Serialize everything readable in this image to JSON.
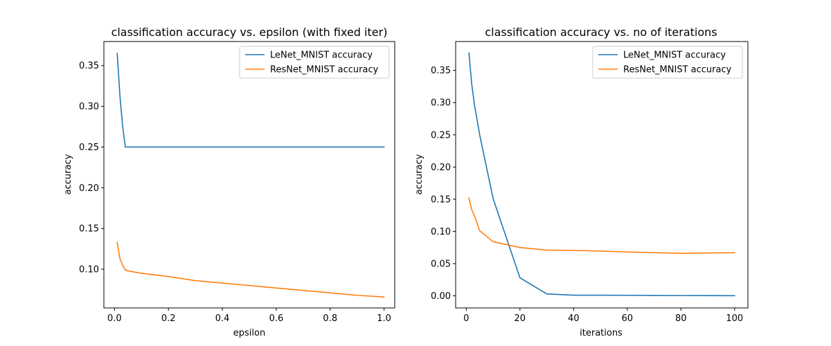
{
  "chart_data": [
    {
      "type": "line",
      "title": "classification accuracy vs. epsilon (with fixed iter)",
      "xlabel": "epsilon",
      "ylabel": "accuracy",
      "xlim": [
        -0.0395,
        1.0395
      ],
      "ylim": [
        0.0525,
        0.3795
      ],
      "xticks": [
        0.0,
        0.2,
        0.4,
        0.6,
        0.8,
        1.0
      ],
      "xtick_labels": [
        "0.0",
        "0.2",
        "0.4",
        "0.6",
        "0.8",
        "1.0"
      ],
      "yticks": [
        0.1,
        0.15,
        0.2,
        0.25,
        0.3,
        0.35
      ],
      "ytick_labels": [
        "0.10",
        "0.15",
        "0.20",
        "0.25",
        "0.30",
        "0.35"
      ],
      "grid": false,
      "legend": "top-right",
      "series": [
        {
          "name": "LeNet_MNIST accuracy",
          "color": "#1f77b4",
          "x": [
            0.01,
            0.02,
            0.03,
            0.04,
            0.05,
            0.1,
            0.2,
            0.3,
            0.4,
            0.5,
            0.6,
            0.7,
            0.8,
            0.9,
            1.0
          ],
          "y": [
            0.365,
            0.313,
            0.276,
            0.25,
            0.25,
            0.25,
            0.25,
            0.25,
            0.25,
            0.25,
            0.25,
            0.25,
            0.25,
            0.25,
            0.25
          ]
        },
        {
          "name": "ResNet_MNIST accuracy",
          "color": "#ff7f0e",
          "x": [
            0.01,
            0.02,
            0.03,
            0.04,
            0.05,
            0.1,
            0.2,
            0.3,
            0.4,
            0.5,
            0.6,
            0.7,
            0.8,
            0.9,
            1.0
          ],
          "y": [
            0.133,
            0.113,
            0.105,
            0.099,
            0.098,
            0.095,
            0.091,
            0.086,
            0.083,
            0.08,
            0.077,
            0.074,
            0.071,
            0.068,
            0.066
          ]
        }
      ]
    },
    {
      "type": "line",
      "title": "classification accuracy vs. no of iterations",
      "xlabel": "iterations",
      "ylabel": "accuracy",
      "xlim": [
        -3.95,
        104.95
      ],
      "ylim": [
        -0.0188,
        0.3948
      ],
      "xticks": [
        0,
        20,
        40,
        60,
        80,
        100
      ],
      "xtick_labels": [
        "0",
        "20",
        "40",
        "60",
        "80",
        "100"
      ],
      "yticks": [
        0.0,
        0.05,
        0.1,
        0.15,
        0.2,
        0.25,
        0.3,
        0.35
      ],
      "ytick_labels": [
        "0.00",
        "0.05",
        "0.10",
        "0.15",
        "0.20",
        "0.25",
        "0.30",
        "0.35"
      ],
      "grid": false,
      "legend": "top-right",
      "series": [
        {
          "name": "LeNet_MNIST accuracy",
          "color": "#1f77b4",
          "x": [
            1,
            2,
            3,
            5,
            10,
            20,
            30,
            40,
            50,
            60,
            70,
            80,
            90,
            100
          ],
          "y": [
            0.377,
            0.33,
            0.298,
            0.25,
            0.151,
            0.028,
            0.003,
            0.001,
            0.001,
            0.0008,
            0.0006,
            0.0004,
            0.0003,
            0.0002
          ]
        },
        {
          "name": "ResNet_MNIST accuracy",
          "color": "#ff7f0e",
          "x": [
            1,
            2,
            3,
            5,
            10,
            20,
            30,
            40,
            50,
            60,
            70,
            80,
            90,
            100
          ],
          "y": [
            0.152,
            0.134,
            0.125,
            0.101,
            0.084,
            0.075,
            0.071,
            0.0705,
            0.0695,
            0.068,
            0.067,
            0.066,
            0.0665,
            0.067
          ]
        }
      ]
    }
  ]
}
